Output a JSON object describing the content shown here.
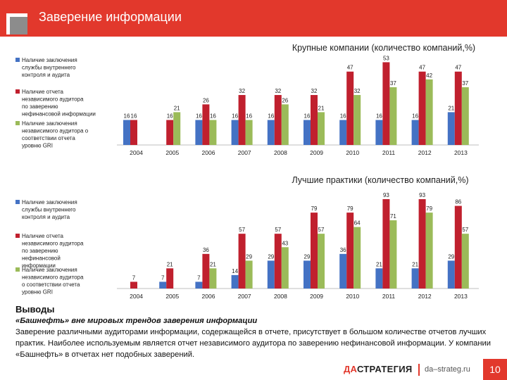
{
  "header": {
    "title": "Заверение информации"
  },
  "colors": {
    "blue": "#4472c4",
    "red": "#c0202e",
    "green": "#9bbb59",
    "accent": "#e2382c"
  },
  "chart_data": [
    {
      "type": "bar",
      "title": "Крупные компании (количество компаний,%)",
      "categories": [
        "2004",
        "2005",
        "2006",
        "2007",
        "2008",
        "2009",
        "2010",
        "2011",
        "2012",
        "2013"
      ],
      "ylim": [
        0,
        55
      ],
      "legend": "left",
      "series": [
        {
          "name": "Наличие заключения службы внутреннего контроля и аудита",
          "color": "#4472c4",
          "values": [
            16,
            null,
            16,
            16,
            16,
            16,
            16,
            16,
            16,
            21
          ]
        },
        {
          "name": "Наличие отчета независимого аудитора по заверению нефинансовой информации",
          "color": "#c0202e",
          "values": [
            16,
            16,
            26,
            32,
            32,
            32,
            47,
            53,
            47,
            47
          ]
        },
        {
          "name": "Наличие заключения независимого аудитора о соответствии отчета уровню GRI",
          "color": "#9bbb59",
          "values": [
            null,
            21,
            16,
            16,
            26,
            21,
            32,
            37,
            42,
            37
          ]
        }
      ]
    },
    {
      "type": "bar",
      "title": "Лучшие практики (количество компаний,%)",
      "categories": [
        "2004",
        "2005",
        "2006",
        "2007",
        "2008",
        "2009",
        "2010",
        "2011",
        "2012",
        "2013"
      ],
      "ylim": [
        0,
        93
      ],
      "legend": "left",
      "series": [
        {
          "name": "Наличие заключения службы внутреннего контроля и аудита",
          "color": "#4472c4",
          "values": [
            null,
            7,
            7,
            14,
            29,
            29,
            36,
            21,
            21,
            29
          ]
        },
        {
          "name": "Наличие отчета независимого аудитора по заверению нефинансовой информации",
          "color": "#c0202e",
          "values": [
            7,
            21,
            36,
            57,
            57,
            79,
            79,
            93,
            93,
            86
          ]
        },
        {
          "name": "Наличие заключения независимого аудитора о соответствии отчета уровню GRI",
          "color": "#9bbb59",
          "values": [
            null,
            null,
            21,
            29,
            43,
            57,
            64,
            71,
            79,
            57
          ]
        }
      ]
    }
  ],
  "conclusions": {
    "title": "Выводы",
    "lead": "«Башнефть» вне мировых трендов заверения информации",
    "text": "Заверение различными аудиторами информации, содержащейся в отчете, присутствует в большом количестве отчетов лучших практик. Наиболее используемым является отчет независимого аудитора по заверению нефинансовой информации. У компании «Башнефть» в отчетах нет подобных заверений."
  },
  "footer": {
    "brand_da": "ДА",
    "brand_rest": "СТРАТЕГИЯ",
    "site": "da–strateg.ru",
    "page": "10"
  }
}
